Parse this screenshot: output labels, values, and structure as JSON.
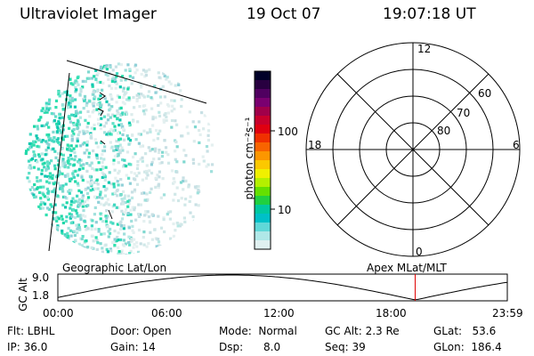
{
  "header": {
    "instrument": "Ultraviolet Imager",
    "date": "19 Oct 07",
    "time": "19:07:18 UT"
  },
  "colorbar": {
    "unit_label": "photon cm⁻²s⁻¹",
    "ticks": [
      "100",
      "10"
    ],
    "colors": [
      "#000028",
      "#280040",
      "#500060",
      "#7a0070",
      "#a0004a",
      "#c8002c",
      "#e00010",
      "#f03000",
      "#f86400",
      "#fc9600",
      "#fcc800",
      "#f0f000",
      "#b4f000",
      "#64e000",
      "#20d040",
      "#00c8a0",
      "#00c0c8",
      "#60d8d8",
      "#b0e8e8",
      "#e0f0f0"
    ]
  },
  "polar": {
    "mlt_labels": {
      "top": "12",
      "left": "18",
      "right": "6",
      "bottom": "0"
    },
    "lat_labels": [
      "60",
      "70",
      "80"
    ]
  },
  "orbit": {
    "left_label": "Geographic Lat/Lon",
    "right_label": "Apex MLat/MLT",
    "y_axis_label": "GC Alt",
    "y_ticks": [
      "9.0",
      "1.8"
    ],
    "x_ticks": [
      "00:00",
      "06:00",
      "12:00",
      "18:00",
      "23:59"
    ],
    "current_time_fraction": 0.795,
    "accent_color": "#e00000"
  },
  "info": {
    "flt": "Flt: LBHL",
    "ip": "IP: 36.0",
    "door": "Door: Open",
    "gain": "Gain: 14",
    "mode": "Mode:  Normal",
    "dsp": "Dsp:      8.0",
    "gc_alt": "GC Alt: 2.3 Re",
    "seq": "Seq: 39",
    "glat": "GLat:   53.6",
    "glon": "GLon:  186.4"
  }
}
